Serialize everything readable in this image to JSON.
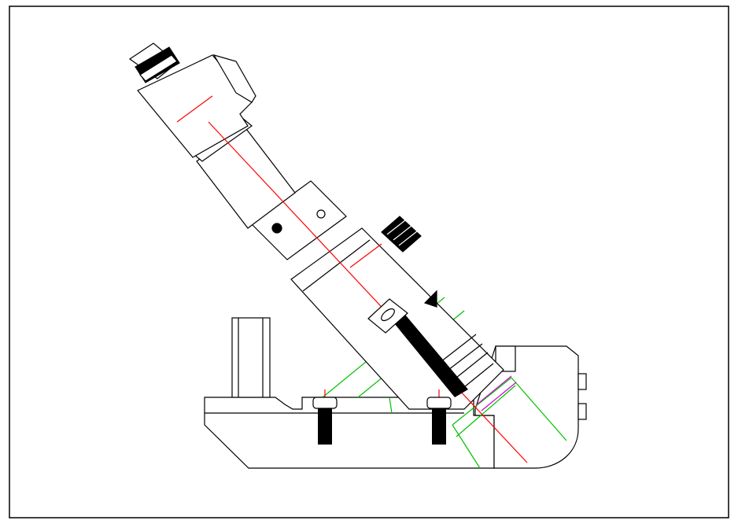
{
  "drawing": {
    "colors": {
      "outline": "#000000",
      "centerline": "#ff0000",
      "construction": "#00c000",
      "highlight": "#d000d0",
      "fill": "#000000",
      "background": "#ffffff"
    },
    "parts": [
      {
        "name": "base-plate",
        "label": ""
      },
      {
        "name": "angled-support-block",
        "label": ""
      },
      {
        "name": "upright-post",
        "label": ""
      },
      {
        "name": "angled-shaft-assembly",
        "label": ""
      },
      {
        "name": "socket-head-bolt-left",
        "label": ""
      },
      {
        "name": "socket-head-bolt-right",
        "label": ""
      },
      {
        "name": "diagonal-bolt",
        "label": ""
      },
      {
        "name": "knurled-knob",
        "label": ""
      }
    ]
  }
}
